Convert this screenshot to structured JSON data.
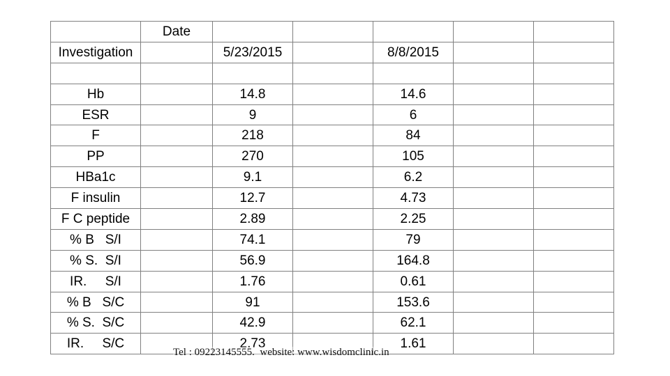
{
  "header": {
    "date_label": "Date",
    "investigation_label": "Investigation",
    "date_1": "5/23/2015",
    "date_2": "8/8/2015"
  },
  "rows": [
    {
      "name": "Hb",
      "v1": "14.8",
      "v2": "14.6"
    },
    {
      "name": "ESR",
      "v1": "9",
      "v2": "6"
    },
    {
      "name": "F",
      "v1": "218",
      "v2": "84"
    },
    {
      "name": "PP",
      "v1": "270",
      "v2": "105"
    },
    {
      "name": "HBa1c",
      "v1": "9.1",
      "v2": "6.2"
    },
    {
      "name": "F insulin",
      "v1": "12.7",
      "v2": "4.73"
    },
    {
      "name": "F C peptide",
      "v1": "2.89",
      "v2": "2.25"
    },
    {
      "name": "% B   S/I",
      "v1": "74.1",
      "v2": "79"
    },
    {
      "name": "% S.  S/I",
      "v1": "56.9",
      "v2": "164.8"
    },
    {
      "name": "IR.     S/I",
      "v1": "1.76",
      "v2": "0.61"
    },
    {
      "name": "% B   S/C",
      "v1": "91",
      "v2": "153.6"
    },
    {
      "name": "% S.  S/C",
      "v1": "42.9",
      "v2": "62.1"
    },
    {
      "name": "IR.     S/C",
      "v1": "2.73",
      "v2": "1.61"
    }
  ],
  "footer": {
    "text": "Tel : 09223145555.  website: www.wisdomclinic.in"
  }
}
